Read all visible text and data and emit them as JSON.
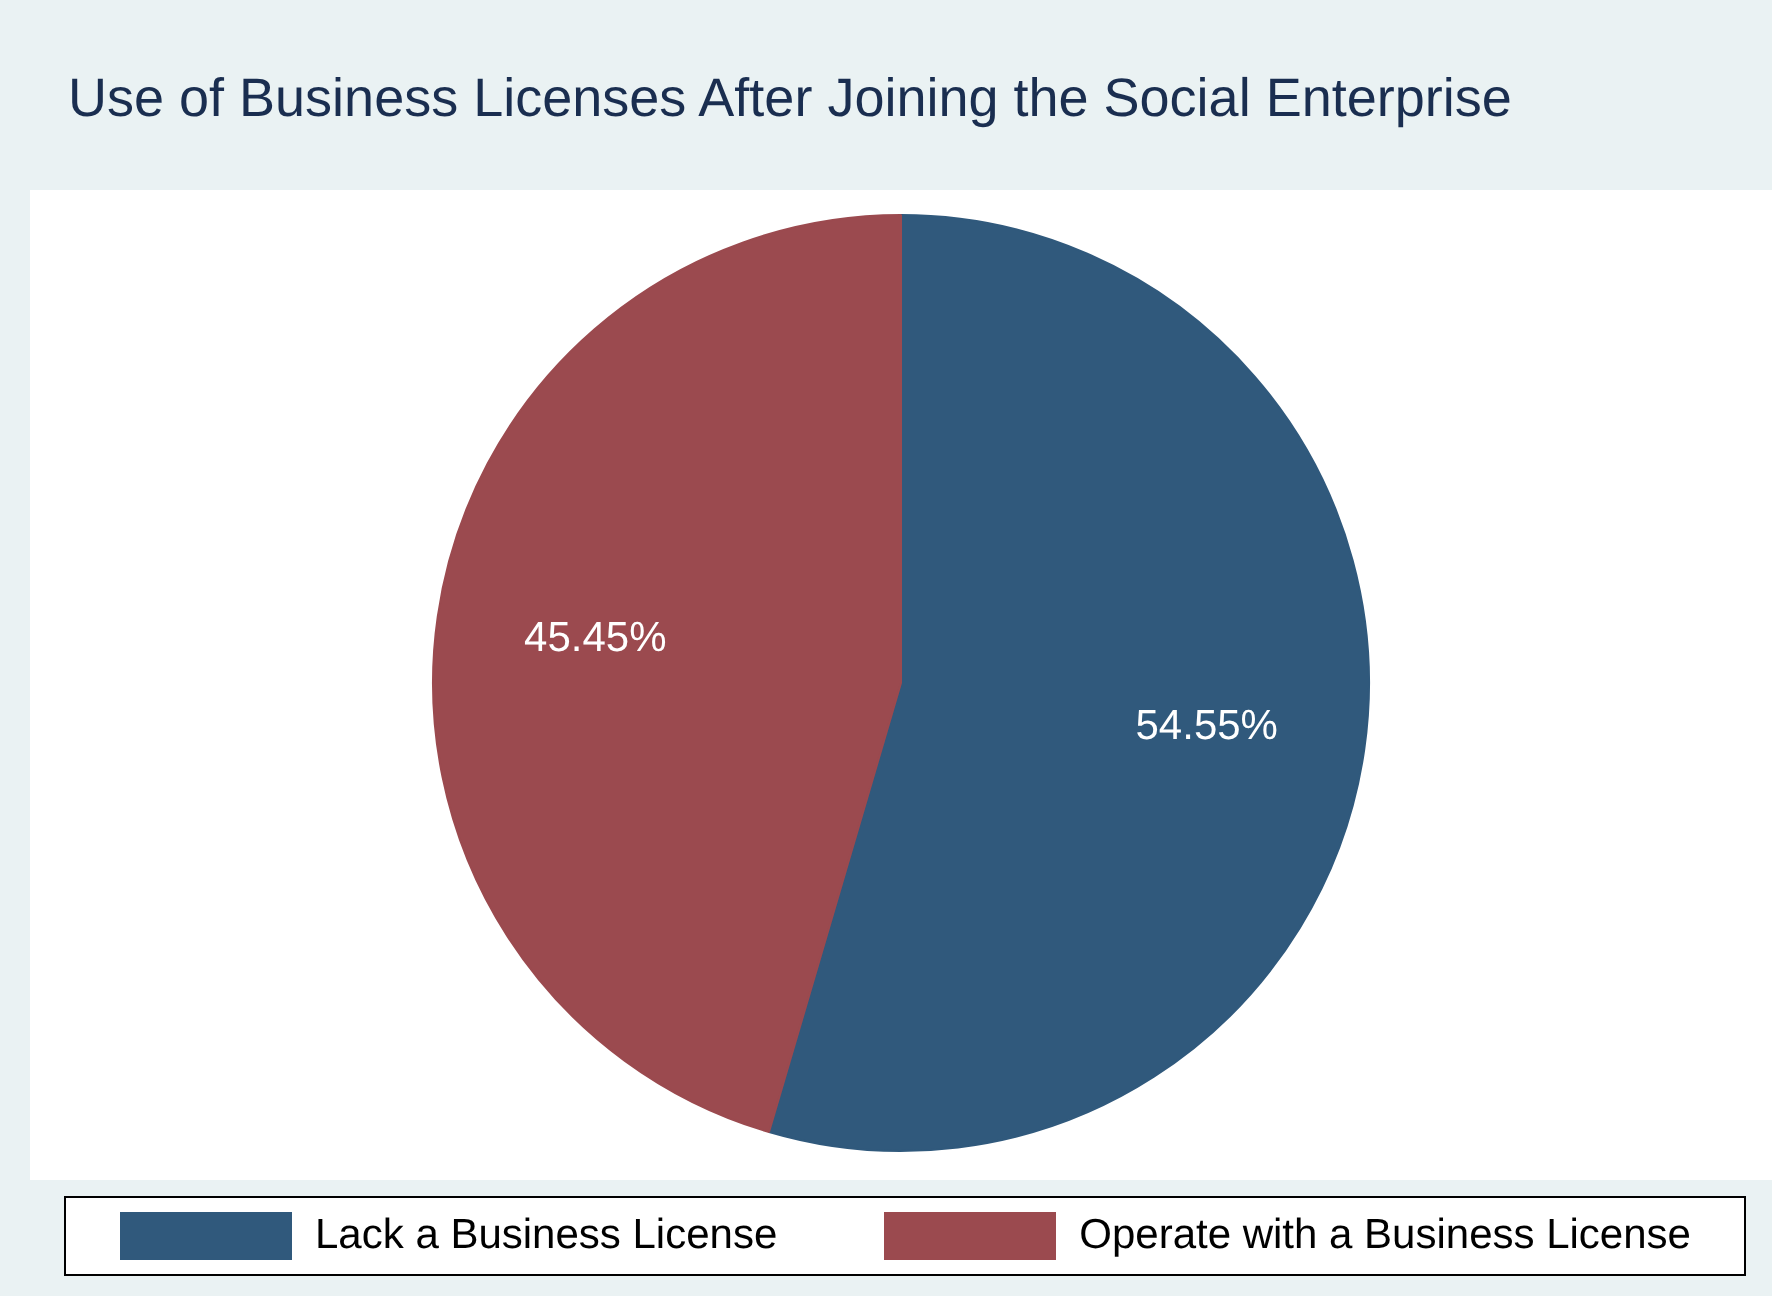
{
  "chart_data": {
    "type": "pie",
    "title": "Use of Business Licenses After Joining the Social Enterprise",
    "categories": [
      "Lack a Business License",
      "Operate with a Business License"
    ],
    "values": [
      54.55,
      45.45
    ],
    "colors": [
      "#30597c",
      "#9b4a4f"
    ],
    "value_labels": [
      "54.55%",
      "45.45%"
    ],
    "legend": "bottom"
  }
}
